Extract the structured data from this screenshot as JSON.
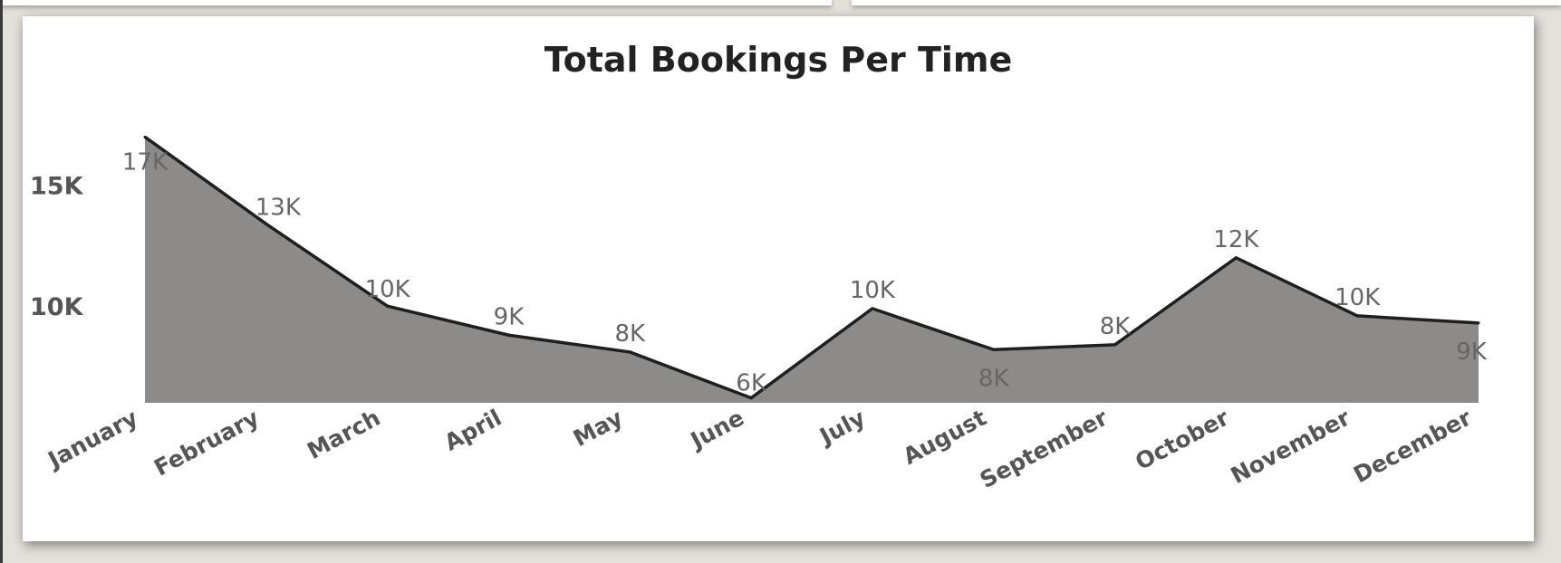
{
  "chart_data": {
    "type": "area",
    "title": "Total Bookings Per Time",
    "xlabel": "",
    "ylabel": "",
    "categories": [
      "January",
      "February",
      "March",
      "April",
      "May",
      "June",
      "July",
      "August",
      "September",
      "October",
      "November",
      "December"
    ],
    "series": [
      {
        "values": [
          17000,
          13400,
          10000,
          8800,
          8100,
          6200,
          9900,
          8200,
          8400,
          12000,
          9600,
          9300
        ],
        "data_labels": [
          "17K",
          "13K",
          "10K",
          "9K",
          "8K",
          "6K",
          "10K",
          "8K",
          "8K",
          "12K",
          "10K",
          "9K"
        ]
      }
    ],
    "y_ticks": [
      {
        "value": 15000,
        "label": "15K"
      },
      {
        "value": 10000,
        "label": "10K"
      }
    ],
    "ylim": [
      6000,
      17500
    ],
    "grid": false,
    "legend": "none",
    "colors": {
      "fill": "#8c8b8a",
      "line": "#1f1f1f"
    }
  }
}
